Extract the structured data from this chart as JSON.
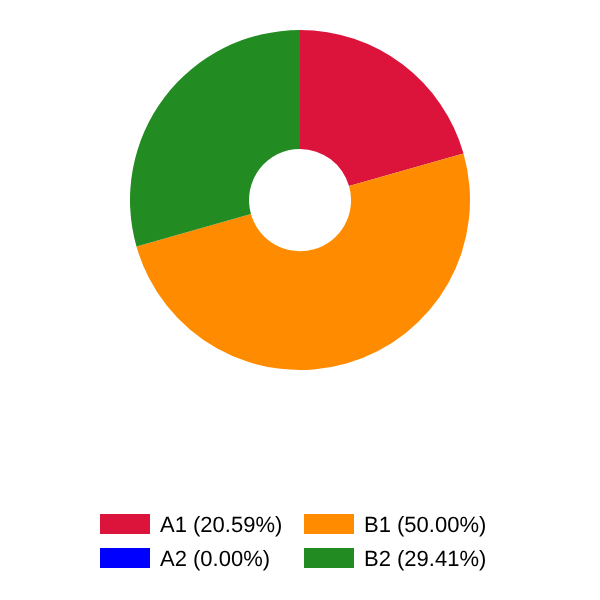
{
  "chart_data": {
    "type": "donut",
    "categories": [
      "A1 (20.59%)",
      "A2 (0.00%)",
      "B1 (50.00%)",
      "B2 (29.41%)"
    ],
    "values": [
      20.59,
      0.0,
      50.0,
      29.41
    ],
    "colors": [
      "#dc143c",
      "#0000ff",
      "#ff8c00",
      "#228b22"
    ],
    "legend": "bottom"
  }
}
